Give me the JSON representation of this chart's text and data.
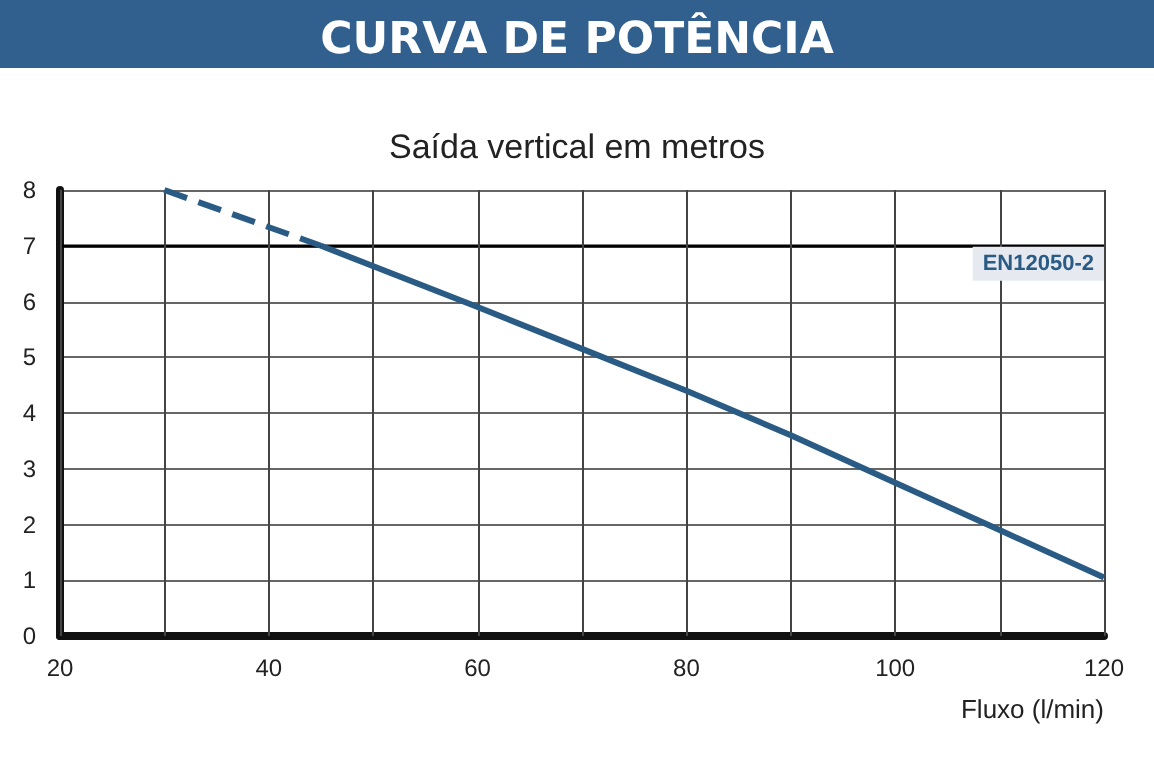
{
  "chart_data": {
    "type": "line",
    "title": "CURVA DE POTÊNCIA",
    "subtitle": "Saída vertical em metros",
    "xlabel": "Fluxo (l/min)",
    "series": [
      {
        "color": "#2a5b85",
        "line_style": "dashed",
        "x": [
          30,
          45
        ],
        "values": [
          8,
          7
        ]
      },
      {
        "color": "#2a5b85",
        "line_style": "solid",
        "x": [
          45,
          60,
          70,
          80,
          90,
          100,
          110,
          120
        ],
        "values": [
          7,
          5.9,
          5.15,
          4.4,
          3.6,
          2.75,
          1.9,
          1.05
        ]
      }
    ],
    "xlim": [
      20,
      120
    ],
    "xticks": [
      20,
      {
        "value": 30,
        "label": null
      },
      40,
      {
        "value": 50,
        "label": null
      },
      60,
      {
        "value": 70,
        "label": null
      },
      80,
      {
        "value": 90,
        "label": null
      },
      100,
      {
        "value": 110,
        "label": null
      },
      120
    ],
    "ylim": [
      0,
      8
    ],
    "yticks": [
      0,
      1,
      2,
      3,
      4,
      5,
      6,
      7,
      8
    ],
    "ref_lines": [
      {
        "axis": "y",
        "value": 7,
        "label": "EN12050-2",
        "color": "#000000"
      }
    ],
    "grid": true,
    "marker": "none"
  }
}
